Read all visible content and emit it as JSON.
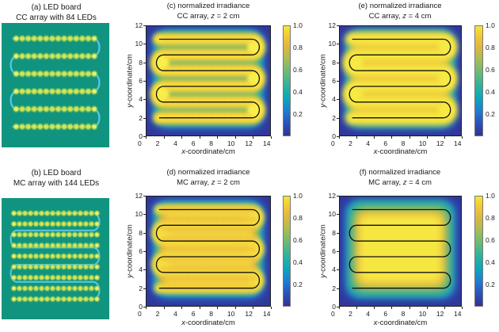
{
  "figure": {
    "background": "#ffffff",
    "text_color": "#1a1a1a"
  },
  "axis_labels": {
    "x_italic": "x",
    "x_rest": "-coordinate/cm",
    "y_italic": "y",
    "y_rest": "-coordinate/cm"
  },
  "panels": {
    "a": {
      "title_line1": "(a) LED board",
      "title_line2": "CC array with 84 LEDs"
    },
    "b": {
      "title_line1": "(b) LED board",
      "title_line2": "MC array with 144 LEDs"
    },
    "c": {
      "title_line1": "(c) normalized irradiance",
      "array_label": "CC array, ",
      "z_var": "z",
      "z_value": " = 2 cm"
    },
    "d": {
      "title_line1": "(d) normalized irradiance",
      "array_label": "MC array, ",
      "z_var": "z",
      "z_value": " = 2 cm"
    },
    "e": {
      "title_line1": "(e) normalized irradiance",
      "array_label": "CC array, ",
      "z_var": "z",
      "z_value": " = 4 cm"
    },
    "f": {
      "title_line1": "(f) normalized irradiance",
      "array_label": "MC array, ",
      "z_var": "z",
      "z_value": " = 4 cm"
    }
  },
  "colormap": {
    "name": "parula-like",
    "stops": [
      [
        0.0,
        "#333193"
      ],
      [
        0.1,
        "#2c4fb5"
      ],
      [
        0.22,
        "#1f7ad4"
      ],
      [
        0.34,
        "#0ba6bd"
      ],
      [
        0.46,
        "#2eb49b"
      ],
      [
        0.58,
        "#6cba74"
      ],
      [
        0.7,
        "#a9bd55"
      ],
      [
        0.8,
        "#d9b742"
      ],
      [
        0.88,
        "#eec23a"
      ],
      [
        0.95,
        "#f4d632"
      ],
      [
        1.0,
        "#f5e63c"
      ]
    ]
  },
  "chart_data": [
    {
      "id": "a",
      "type": "scatter",
      "subtype": "led-board",
      "title": "(a) LED board CC array with 84 LEDs",
      "led_count": 84,
      "rows": 6,
      "cols": 14,
      "row_y_cm": [
        10.5,
        8.8,
        7.1,
        5.4,
        3.7,
        2.0
      ],
      "led_x_range_cm": [
        1.9,
        12.05
      ],
      "wire": "serpentine, 6 horizontal passes with alternating right/left U-turns",
      "board_color": "#11947f",
      "led_color": "#d3e457",
      "wire_color": "#56c5e6"
    },
    {
      "id": "b",
      "type": "scatter",
      "subtype": "led-board",
      "title": "(b) LED board MC array with 144 LEDs",
      "led_count": 144,
      "rows": 9,
      "cols": 16,
      "row_y_cm": [
        10.5,
        9.44,
        8.38,
        7.31,
        6.25,
        5.19,
        4.13,
        3.06,
        2.0
      ],
      "led_x_range_cm": [
        1.6,
        12.4
      ],
      "wire": "serpentine, 6 horizontal passes weaving between the 9 LED rows",
      "board_color": "#11947f",
      "led_color": "#d3e457",
      "wire_color": "#56c5e6"
    },
    {
      "id": "c",
      "type": "heatmap",
      "title": "(c) normalized irradiance CC array, z = 2 cm",
      "xlabel": "x-coordinate/cm",
      "ylabel": "y-coordinate/cm",
      "xlim": [
        0,
        14
      ],
      "ylim": [
        0,
        12
      ],
      "xticks": [
        0,
        2,
        4,
        6,
        8,
        10,
        12,
        14
      ],
      "yticks": [
        0,
        2,
        4,
        6,
        8,
        10,
        12
      ],
      "value_range": [
        0,
        1
      ],
      "colorbar_ticks": [
        "1.0",
        "0.8",
        "0.6",
        "0.4",
        "0.2"
      ],
      "wire_overlay_y_cm": [
        10.5,
        8.8,
        7.1,
        5.4,
        3.7,
        2.0
      ],
      "wire_overlay_x_cm": [
        1.5,
        11.9
      ],
      "pattern": "yellow serpentine ribbon (~0.9-1.0) along the wire rows y=2-10.5 cm with bright spots at U-turns, green (~0.5-0.6) between rows, dark blue (<0.2) background"
    },
    {
      "id": "d",
      "type": "heatmap",
      "title": "(d) normalized irradiance MC array, z = 2 cm",
      "xlabel": "x-coordinate/cm",
      "ylabel": "y-coordinate/cm",
      "xlim": [
        0,
        14
      ],
      "ylim": [
        0,
        12
      ],
      "xticks": [
        0,
        2,
        4,
        6,
        8,
        10,
        12,
        14
      ],
      "yticks": [
        0,
        2,
        4,
        6,
        8,
        10,
        12
      ],
      "value_range": [
        0,
        1
      ],
      "colorbar_ticks": [
        "1.0",
        "0.8",
        "0.6",
        "0.4",
        "0.2"
      ],
      "wire_overlay_y_cm": [
        10.5,
        8.8,
        7.1,
        5.4,
        3.7,
        2.0
      ],
      "wire_overlay_x_cm": [
        1.5,
        11.9
      ],
      "pattern": "broad speckled yellow-orange plateau (~0.8-1.0) covering x 2-12 cm, y 2-10.5 cm, fading through green/cyan to dark blue background"
    },
    {
      "id": "e",
      "type": "heatmap",
      "title": "(e) normalized irradiance CC array, z = 4 cm",
      "xlabel": "x-coordinate/cm",
      "ylabel": "y-coordinate/cm",
      "xlim": [
        0,
        14
      ],
      "ylim": [
        0,
        12
      ],
      "xticks": [
        0,
        2,
        4,
        6,
        8,
        10,
        12,
        14
      ],
      "yticks": [
        0,
        2,
        4,
        6,
        8,
        10,
        12
      ],
      "value_range": [
        0,
        1
      ],
      "colorbar_ticks": [
        "1.0",
        "0.8",
        "0.6",
        "0.4",
        "0.2"
      ],
      "wire_overlay_y_cm": [
        10.5,
        8.8,
        7.1,
        5.4,
        3.7,
        2.0
      ],
      "wire_overlay_x_cm": [
        1.5,
        11.9
      ],
      "pattern": "smooth yellow plateau (~0.9-1.0) with faint horizontal banding along wire rows, soft green/blue falloff to dark blue background"
    },
    {
      "id": "f",
      "type": "heatmap",
      "title": "(f) normalized irradiance MC array, z = 4 cm",
      "xlabel": "x-coordinate/cm",
      "ylabel": "y-coordinate/cm",
      "xlim": [
        0,
        14
      ],
      "ylim": [
        0,
        12
      ],
      "xticks": [
        0,
        2,
        4,
        6,
        8,
        10,
        12,
        14
      ],
      "yticks": [
        0,
        2,
        4,
        6,
        8,
        10,
        12
      ],
      "value_range": [
        0,
        1
      ],
      "colorbar_ticks": [
        "1.0",
        "0.8",
        "0.6",
        "0.4",
        "0.2"
      ],
      "wire_overlay_y_cm": [
        10.5,
        8.8,
        7.1,
        5.4,
        3.7,
        2.0
      ],
      "wire_overlay_x_cm": [
        1.5,
        11.9
      ],
      "pattern": "very smooth uniform yellow square plateau (~0.9-1.0) over x 2-12 cm, y 2-10.5 cm, soft falloff to dark blue background"
    }
  ]
}
